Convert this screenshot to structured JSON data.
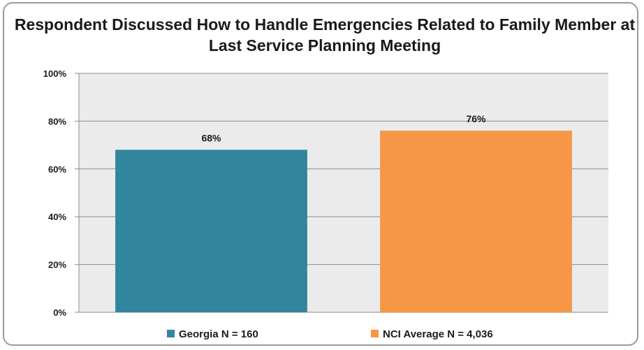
{
  "chart_data": {
    "type": "bar",
    "title": "Respondent Discussed How to Handle Emergencies Related to Family Member at Last Service Planning Meeting",
    "categories": [
      "Georgia N = 160",
      "NCI Average N = 4,036"
    ],
    "values": [
      68,
      76
    ],
    "data_labels": [
      "68%",
      "76%"
    ],
    "colors": [
      "#31859c",
      "#f79646"
    ],
    "ylim": [
      0,
      100
    ],
    "yticks": [
      "0%",
      "20%",
      "40%",
      "60%",
      "80%",
      "100%"
    ],
    "grid": true,
    "legend": "bottom",
    "plot_background": "#ebebeb"
  }
}
